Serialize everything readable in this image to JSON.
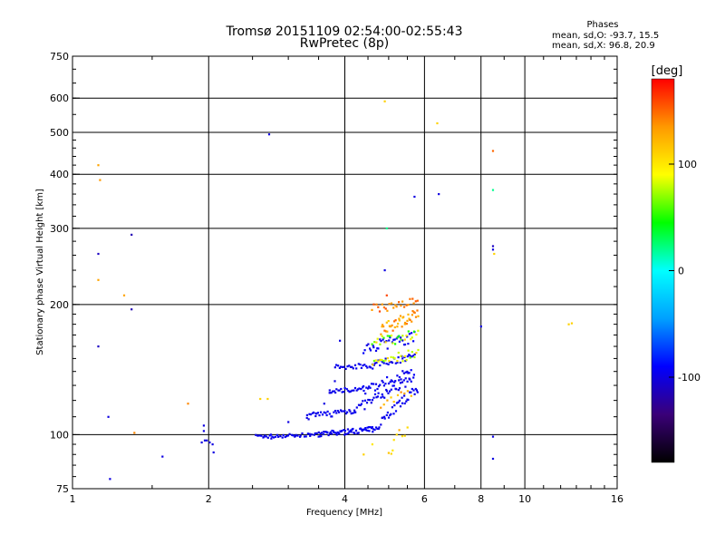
{
  "chart_data": {
    "type": "scatter",
    "title": "Tromsø 20151109 02:54:00-02:55:43",
    "subtitle": "RwPretec (8p)",
    "xlabel": "Frequency [MHz]",
    "ylabel": "Stationary phase Virtual Height [km]",
    "xscale": "log",
    "yscale": "log",
    "xlim": [
      1,
      16
    ],
    "ylim": [
      75,
      750
    ],
    "x_ticks": [
      1,
      2,
      4,
      6,
      8,
      10,
      16
    ],
    "y_ticks": [
      75,
      100,
      200,
      300,
      400,
      500,
      600,
      750
    ],
    "grid": true,
    "colorbar": {
      "label": "[deg]",
      "range": [
        -180,
        180
      ],
      "ticks": [
        100,
        0,
        -100
      ],
      "colors": [
        "#000000",
        "#3a0078",
        "#0000ff",
        "#00a0ff",
        "#00ffff",
        "#00ff00",
        "#ffff00",
        "#ff9900",
        "#ff0000"
      ]
    },
    "phase_stats": {
      "heading": "Phases",
      "o_mode": "mean, sd,O: -93.7, 15.5",
      "x_mode": "mean, sd,X:  96.8, 20.9"
    },
    "points": [
      {
        "f": 1.14,
        "h": 420,
        "phase": 130
      },
      {
        "f": 1.15,
        "h": 388,
        "phase": 135
      },
      {
        "f": 1.14,
        "h": 262,
        "phase": -110
      },
      {
        "f": 1.14,
        "h": 228,
        "phase": 130
      },
      {
        "f": 1.14,
        "h": 160,
        "phase": -110
      },
      {
        "f": 1.2,
        "h": 110,
        "phase": -100
      },
      {
        "f": 1.21,
        "h": 79,
        "phase": -100
      },
      {
        "f": 1.3,
        "h": 210,
        "phase": 130
      },
      {
        "f": 1.35,
        "h": 290,
        "phase": -115
      },
      {
        "f": 1.35,
        "h": 195,
        "phase": -115
      },
      {
        "f": 1.37,
        "h": 101,
        "phase": 140
      },
      {
        "f": 1.58,
        "h": 89,
        "phase": -100
      },
      {
        "f": 1.8,
        "h": 118,
        "phase": 140
      },
      {
        "f": 1.95,
        "h": 105,
        "phase": -100
      },
      {
        "f": 1.95,
        "h": 102,
        "phase": -100
      },
      {
        "f": 1.93,
        "h": 96,
        "phase": -100
      },
      {
        "f": 1.96,
        "h": 97,
        "phase": -100
      },
      {
        "f": 1.98,
        "h": 97,
        "phase": -100
      },
      {
        "f": 2.01,
        "h": 96,
        "phase": -100
      },
      {
        "f": 2.04,
        "h": 95,
        "phase": -100
      },
      {
        "f": 2.05,
        "h": 91,
        "phase": -100
      },
      {
        "f": 2.6,
        "h": 121,
        "phase": 110
      },
      {
        "f": 2.7,
        "h": 121,
        "phase": 110
      },
      {
        "f": 2.72,
        "h": 495,
        "phase": -100
      },
      {
        "f": 2.65,
        "h": 99,
        "phase": -100
      },
      {
        "f": 2.75,
        "h": 98,
        "phase": -100
      },
      {
        "f": 2.85,
        "h": 99,
        "phase": -100
      },
      {
        "f": 3.0,
        "h": 107,
        "phase": -100
      },
      {
        "f": 3.1,
        "h": 99,
        "phase": -100
      },
      {
        "f": 3.3,
        "h": 111,
        "phase": -100
      },
      {
        "f": 3.45,
        "h": 112,
        "phase": -100
      },
      {
        "f": 3.6,
        "h": 118,
        "phase": -100
      },
      {
        "f": 3.7,
        "h": 125,
        "phase": -100
      },
      {
        "f": 3.8,
        "h": 133,
        "phase": -100
      },
      {
        "f": 3.9,
        "h": 165,
        "phase": -100
      },
      {
        "f": 4.4,
        "h": 90,
        "phase": 110
      },
      {
        "f": 4.6,
        "h": 95,
        "phase": 100
      },
      {
        "f": 4.9,
        "h": 590,
        "phase": 110
      },
      {
        "f": 4.95,
        "h": 300,
        "phase": 20
      },
      {
        "f": 4.9,
        "h": 240,
        "phase": -100
      },
      {
        "f": 4.95,
        "h": 210,
        "phase": 160
      },
      {
        "f": 5.1,
        "h": 92,
        "phase": 100
      },
      {
        "f": 5.7,
        "h": 355,
        "phase": -100
      },
      {
        "f": 6.4,
        "h": 525,
        "phase": 110
      },
      {
        "f": 6.45,
        "h": 360,
        "phase": -100
      },
      {
        "f": 8.0,
        "h": 178,
        "phase": -100
      },
      {
        "f": 8.5,
        "h": 453,
        "phase": 150
      },
      {
        "f": 8.5,
        "h": 368,
        "phase": 20
      },
      {
        "f": 8.5,
        "h": 273,
        "phase": -110
      },
      {
        "f": 8.5,
        "h": 268,
        "phase": -100
      },
      {
        "f": 8.55,
        "h": 262,
        "phase": 110
      },
      {
        "f": 8.5,
        "h": 99,
        "phase": -100
      },
      {
        "f": 8.5,
        "h": 88,
        "phase": -100
      },
      {
        "f": 12.5,
        "h": 180,
        "phase": 110
      },
      {
        "f": 12.7,
        "h": 181,
        "phase": 110
      }
    ],
    "traces": [
      {
        "f": [
          2.55,
          3.5
        ],
        "h": [
          99,
          100
        ],
        "n": 40,
        "spread": 1.0,
        "phase": [
          -100,
          -92
        ]
      },
      {
        "f": [
          3.5,
          4.6
        ],
        "h": [
          100,
          103
        ],
        "n": 60,
        "spread": 1.5,
        "phase": [
          -100,
          -92
        ]
      },
      {
        "f": [
          4.6,
          5.8
        ],
        "h": [
          103,
          128
        ],
        "n": 40,
        "spread": 3.0,
        "phase": [
          -100,
          -92
        ]
      },
      {
        "f": [
          3.3,
          4.2
        ],
        "h": [
          110,
          114
        ],
        "n": 35,
        "spread": 2.0,
        "phase": [
          -100,
          -92
        ]
      },
      {
        "f": [
          4.2,
          5.7
        ],
        "h": [
          114,
          135
        ],
        "n": 45,
        "spread": 3.0,
        "phase": [
          -100,
          -92
        ]
      },
      {
        "f": [
          3.7,
          4.4
        ],
        "h": [
          126,
          128
        ],
        "n": 25,
        "spread": 1.5,
        "phase": [
          -100,
          -92
        ]
      },
      {
        "f": [
          4.4,
          5.6
        ],
        "h": [
          126,
          140
        ],
        "n": 35,
        "spread": 3.0,
        "phase": [
          -100,
          -92
        ]
      },
      {
        "f": [
          3.8,
          4.6
        ],
        "h": [
          143,
          145
        ],
        "n": 25,
        "spread": 2.0,
        "phase": [
          -100,
          -92
        ]
      },
      {
        "f": [
          4.6,
          5.7
        ],
        "h": [
          145,
          152
        ],
        "n": 30,
        "spread": 3.0,
        "phase": [
          -100,
          -92
        ]
      },
      {
        "f": [
          4.4,
          5.7
        ],
        "h": [
          158,
          168
        ],
        "n": 35,
        "spread": 5.0,
        "phase": [
          -100,
          -90
        ]
      },
      {
        "f": [
          4.6,
          5.8
        ],
        "h": [
          148,
          154
        ],
        "n": 25,
        "spread": 4.0,
        "phase": [
          60,
          110
        ]
      },
      {
        "f": [
          4.6,
          5.8
        ],
        "h": [
          162,
          172
        ],
        "n": 25,
        "spread": 5.0,
        "phase": [
          40,
          110
        ]
      },
      {
        "f": [
          4.8,
          5.8
        ],
        "h": [
          175,
          190
        ],
        "n": 40,
        "spread": 6.0,
        "phase": [
          110,
          150
        ]
      },
      {
        "f": [
          4.6,
          5.8
        ],
        "h": [
          195,
          205
        ],
        "n": 25,
        "spread": 5.0,
        "phase": [
          130,
          160
        ]
      },
      {
        "f": [
          4.8,
          5.6
        ],
        "h": [
          118,
          125
        ],
        "n": 10,
        "spread": 3.0,
        "phase": [
          110,
          140
        ]
      },
      {
        "f": [
          5.0,
          5.5
        ],
        "h": [
          92,
          104
        ],
        "n": 8,
        "spread": 4.0,
        "phase": [
          100,
          130
        ]
      }
    ]
  }
}
